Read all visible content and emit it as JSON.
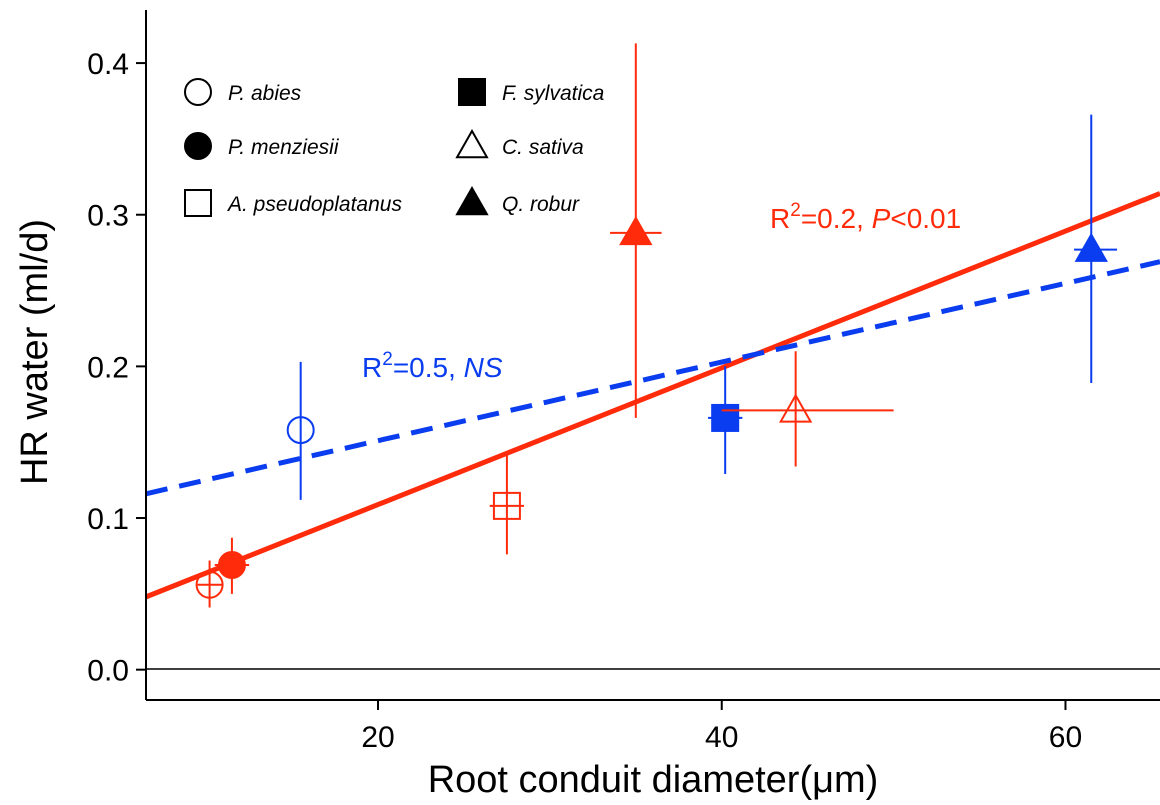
{
  "chart_data": {
    "type": "scatter",
    "xlabel": "Root conduit diameter(μm)",
    "ylabel": "HR water (ml/d)",
    "xlim": [
      6.5,
      65.5
    ],
    "ylim": [
      -0.02,
      0.435
    ],
    "x_ticks": [
      20,
      40,
      60
    ],
    "y_ticks": [
      0.0,
      0.1,
      0.2,
      0.3,
      0.4
    ],
    "y_tick_labels": [
      "0.0",
      "0.1",
      "0.2",
      "0.3",
      "0.4"
    ],
    "x_tick_labels": [
      "20",
      "40",
      "60"
    ],
    "grid": false,
    "legend_position": "top-left",
    "colors": {
      "red": "#ff2b0a",
      "blue": "#0a3cf0",
      "axis": "#000000"
    },
    "legend": [
      {
        "label": "P. abies",
        "marker": "circle-open"
      },
      {
        "label": "P. menziesii",
        "marker": "circle-filled"
      },
      {
        "label": "A. pseudoplatanus",
        "marker": "square-open"
      },
      {
        "label": "F. sylvatica",
        "marker": "square-filled"
      },
      {
        "label": "C. sativa",
        "marker": "triangle-open"
      },
      {
        "label": "Q. robur",
        "marker": "triangle-filled"
      }
    ],
    "points": [
      {
        "species": "P. abies",
        "color": "blue",
        "marker": "circle-open",
        "x": 15.5,
        "y": 0.158,
        "y_err": [
          0.112,
          0.203
        ],
        "x_err": null
      },
      {
        "species": "P. abies",
        "color": "red",
        "marker": "circle-open",
        "x": 10.2,
        "y": 0.056,
        "y_err": [
          0.041,
          0.072
        ],
        "x_err": [
          9.5,
          11.0
        ]
      },
      {
        "species": "P. menziesii",
        "color": "red",
        "marker": "circle-filled",
        "x": 11.5,
        "y": 0.069,
        "y_err": [
          0.05,
          0.087
        ],
        "x_err": [
          10.5,
          12.5
        ]
      },
      {
        "species": "A. pseudoplatanus",
        "color": "red",
        "marker": "square-open",
        "x": 27.5,
        "y": 0.108,
        "y_err": [
          0.076,
          0.142
        ],
        "x_err": [
          26.5,
          28.5
        ]
      },
      {
        "species": "Q. robur",
        "color": "red",
        "marker": "triangle-filled",
        "x": 35.0,
        "y": 0.288,
        "y_err": [
          0.166,
          0.413
        ],
        "x_err": [
          33.5,
          36.5
        ]
      },
      {
        "species": "F. sylvatica",
        "color": "blue",
        "marker": "square-filled",
        "x": 40.2,
        "y": 0.166,
        "y_err": [
          0.129,
          0.2
        ],
        "x_err": [
          39.2,
          41.2
        ]
      },
      {
        "species": "C. sativa",
        "color": "red",
        "marker": "triangle-open",
        "x": 44.3,
        "y": 0.171,
        "y_err": [
          0.134,
          0.21
        ],
        "x_err": [
          40.0,
          50.0
        ]
      },
      {
        "species": "Q. robur",
        "color": "blue",
        "marker": "triangle-filled",
        "x": 61.5,
        "y": 0.277,
        "y_err": [
          0.189,
          0.366
        ],
        "x_err": [
          60.5,
          63.0
        ]
      }
    ],
    "fits": [
      {
        "color": "red",
        "style": "solid",
        "x": [
          6.5,
          65.5
        ],
        "y": [
          0.048,
          0.314
        ],
        "label_parts": [
          "R",
          "2",
          "=0.2, ",
          "P",
          "<0.01"
        ]
      },
      {
        "color": "blue",
        "style": "dashed",
        "x": [
          6.5,
          65.5
        ],
        "y": [
          0.116,
          0.269
        ],
        "label_parts": [
          "R",
          "2",
          "=0.5, ",
          "NS",
          ""
        ]
      }
    ]
  }
}
